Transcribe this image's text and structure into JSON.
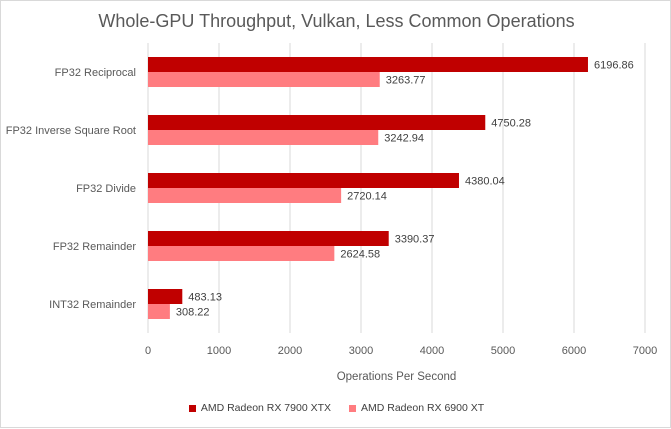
{
  "chart_data": {
    "type": "bar",
    "orientation": "horizontal",
    "title": "Whole-GPU Throughput, Vulkan, Less Common Operations",
    "xlabel": "Operations Per Second",
    "ylabel": "",
    "categories": [
      "FP32 Reciprocal",
      "FP32 Inverse Square Root",
      "FP32 Divide",
      "FP32 Remainder",
      "INT32 Remainder"
    ],
    "series": [
      {
        "name": "AMD Radeon RX 7900 XTX",
        "color": "#c00000",
        "values": [
          6196.86,
          4750.28,
          4380.04,
          3390.37,
          483.13
        ],
        "labels": [
          "6196.86",
          "4750.28",
          "4380.04",
          "3390.37",
          "483.13"
        ]
      },
      {
        "name": "AMD Radeon RX 6900 XT",
        "color": "#ff7c80",
        "values": [
          3263.77,
          3242.94,
          2720.14,
          2624.58,
          308.22
        ],
        "labels": [
          "3263.77",
          "3242.94",
          "2720.14",
          "2624.58",
          "308.22"
        ]
      }
    ],
    "xlim": [
      0,
      7000
    ],
    "xticks": [
      "0",
      "1000",
      "2000",
      "3000",
      "4000",
      "5000",
      "6000",
      "7000"
    ],
    "grid": true,
    "legend": "bottom"
  }
}
